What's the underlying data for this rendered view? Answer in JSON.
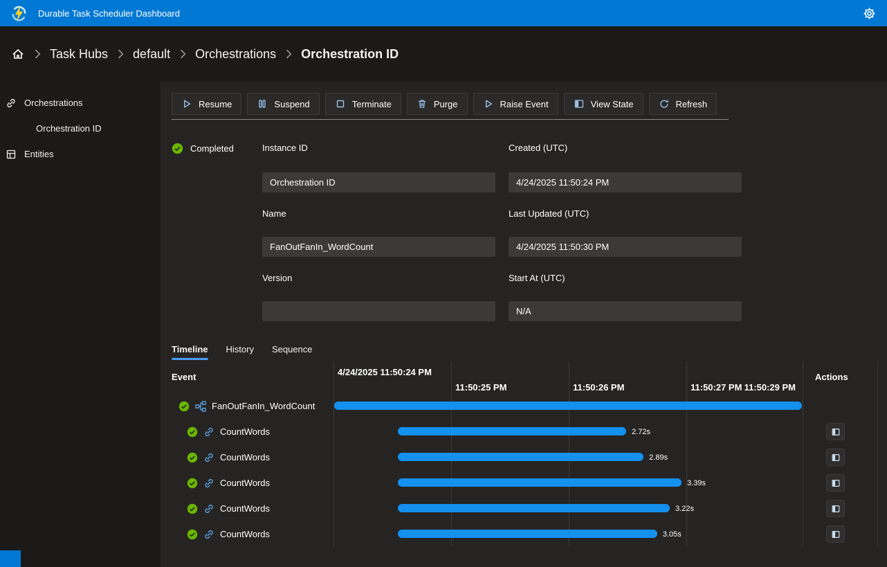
{
  "app": {
    "title": "Durable Task Scheduler Dashboard"
  },
  "colors": {
    "accent": "#0078d4",
    "bar_blue": "#1490ef",
    "status_green": "#6bb700",
    "tab_underline": "#479ef5"
  },
  "breadcrumb": {
    "items": [
      {
        "label": "Task Hubs"
      },
      {
        "label": "default"
      },
      {
        "label": "Orchestrations"
      },
      {
        "label": "Orchestration ID",
        "current": true
      }
    ]
  },
  "sidebar": {
    "items": [
      {
        "label": "Orchestrations"
      },
      {
        "label": "Orchestration ID"
      },
      {
        "label": "Entities"
      }
    ]
  },
  "toolbar": {
    "buttons": [
      {
        "label": "Resume",
        "icon": "play-icon"
      },
      {
        "label": "Suspend",
        "icon": "pause-icon"
      },
      {
        "label": "Terminate",
        "icon": "stop-icon"
      },
      {
        "label": "Purge",
        "icon": "trash-icon"
      },
      {
        "label": "Raise Event",
        "icon": "raise-event-icon"
      },
      {
        "label": "View State",
        "icon": "view-state-icon"
      },
      {
        "label": "Refresh",
        "icon": "refresh-icon"
      }
    ]
  },
  "status": {
    "label": "Completed"
  },
  "form": {
    "fields": [
      {
        "label": "Instance ID",
        "value": "Orchestration ID"
      },
      {
        "label": "Created (UTC)",
        "value": "4/24/2025 11:50:24 PM"
      },
      {
        "label": "Name",
        "value": "FanOutFanIn_WordCount"
      },
      {
        "label": "Last Updated (UTC)",
        "value": "4/24/2025 11:50:30 PM"
      },
      {
        "label": "Version",
        "value": ""
      },
      {
        "label": "Start At (UTC)",
        "value": "N/A"
      }
    ]
  },
  "tabs": [
    {
      "label": "Timeline",
      "active": true
    },
    {
      "label": "History",
      "active": false
    },
    {
      "label": "Sequence",
      "active": false
    }
  ],
  "timeline": {
    "event_header": "Event",
    "actions_header": "Actions",
    "ticks": [
      {
        "date": "4/24/2025",
        "time": "11:50:24 PM"
      },
      {
        "time": "11:50:25 PM"
      },
      {
        "time": "11:50:26 PM"
      },
      {
        "time": "11:50:27 PM"
      },
      {
        "time": "11:50:29 PM"
      }
    ],
    "rows": [
      {
        "name": "FanOutFanIn_WordCount",
        "type": "orchestration",
        "status": "completed",
        "duration": "",
        "bar": {
          "left": 0.2,
          "width": 99.6
        }
      },
      {
        "name": "CountWords",
        "type": "activity",
        "status": "completed",
        "duration": "2.72s",
        "bar": {
          "left": 13.7,
          "width": 48.7
        }
      },
      {
        "name": "CountWords",
        "type": "activity",
        "status": "completed",
        "duration": "2.89s",
        "bar": {
          "left": 13.7,
          "width": 52.4
        }
      },
      {
        "name": "CountWords",
        "type": "activity",
        "status": "completed",
        "duration": "3.39s",
        "bar": {
          "left": 13.7,
          "width": 60.5
        }
      },
      {
        "name": "CountWords",
        "type": "activity",
        "status": "completed",
        "duration": "3.22s",
        "bar": {
          "left": 13.7,
          "width": 58.0
        }
      },
      {
        "name": "CountWords",
        "type": "activity",
        "status": "completed",
        "duration": "3.05s",
        "bar": {
          "left": 13.7,
          "width": 55.3
        }
      }
    ]
  }
}
